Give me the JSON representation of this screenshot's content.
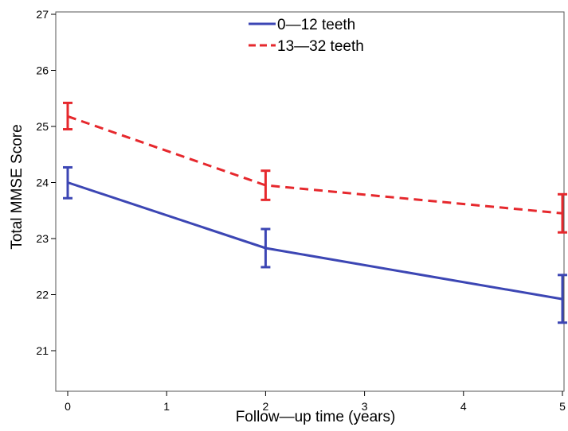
{
  "chart_data": {
    "type": "line",
    "xlabel": "Follow—up time (years)",
    "ylabel": "Total MMSE Score",
    "xlim": [
      0,
      5
    ],
    "ylim": [
      21,
      27
    ],
    "xticks": [
      "0",
      "1",
      "2",
      "3",
      "4",
      "5"
    ],
    "yticks": [
      "21",
      "22",
      "23",
      "24",
      "25",
      "26",
      "27"
    ],
    "grid": false,
    "legend_position": "top-center",
    "x": [
      0,
      2,
      5
    ],
    "series": [
      {
        "name": "0—12 teeth",
        "color": "#3c46b4",
        "line_style": "solid",
        "values": [
          24.0,
          22.83,
          21.92
        ],
        "error_lower": [
          23.72,
          22.49,
          21.5
        ],
        "error_upper": [
          24.27,
          23.17,
          22.35
        ]
      },
      {
        "name": "13—32 teeth",
        "color": "#e6282d",
        "line_style": "dashed",
        "values": [
          25.18,
          23.95,
          23.45
        ],
        "error_lower": [
          24.95,
          23.69,
          23.11
        ],
        "error_upper": [
          25.42,
          24.21,
          23.79
        ]
      }
    ]
  }
}
